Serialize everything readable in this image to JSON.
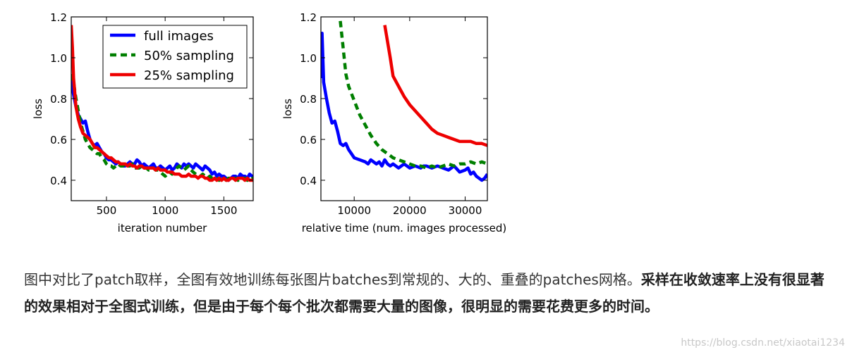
{
  "chart_data": [
    {
      "type": "line",
      "xlabel": "iteration number",
      "ylabel": "loss",
      "xlim": [
        200,
        1750
      ],
      "ylim": [
        0.3,
        1.2
      ],
      "xticks": [
        500,
        1000,
        1500
      ],
      "yticks": [
        0.4,
        0.6,
        0.8,
        1.0,
        1.2
      ],
      "legend_position": "top-right",
      "grid": false,
      "series": [
        {
          "name": "full images",
          "color": "#0000ff",
          "dash": "solid",
          "x": [
            200,
            210,
            220,
            240,
            260,
            280,
            300,
            320,
            340,
            360,
            380,
            400,
            420,
            440,
            460,
            480,
            500,
            520,
            540,
            560,
            580,
            600,
            620,
            640,
            660,
            680,
            700,
            720,
            740,
            760,
            780,
            800,
            820,
            840,
            860,
            880,
            900,
            920,
            940,
            960,
            980,
            1000,
            1020,
            1040,
            1060,
            1080,
            1100,
            1120,
            1140,
            1160,
            1180,
            1200,
            1220,
            1240,
            1260,
            1280,
            1300,
            1320,
            1340,
            1360,
            1380,
            1400,
            1420,
            1440,
            1460,
            1480,
            1500,
            1520,
            1540,
            1560,
            1580,
            1600,
            1620,
            1640,
            1660,
            1680,
            1700,
            1720,
            1740,
            1750
          ],
          "y": [
            0.9,
            0.85,
            0.82,
            0.76,
            0.72,
            0.7,
            0.68,
            0.69,
            0.64,
            0.6,
            0.58,
            0.57,
            0.58,
            0.56,
            0.54,
            0.53,
            0.51,
            0.5,
            0.5,
            0.49,
            0.48,
            0.49,
            0.48,
            0.47,
            0.47,
            0.48,
            0.49,
            0.48,
            0.48,
            0.5,
            0.49,
            0.47,
            0.48,
            0.47,
            0.46,
            0.47,
            0.48,
            0.46,
            0.46,
            0.47,
            0.46,
            0.45,
            0.46,
            0.47,
            0.45,
            0.46,
            0.48,
            0.47,
            0.46,
            0.48,
            0.47,
            0.48,
            0.47,
            0.46,
            0.48,
            0.47,
            0.46,
            0.45,
            0.47,
            0.46,
            0.45,
            0.43,
            0.44,
            0.42,
            0.43,
            0.42,
            0.42,
            0.41,
            0.4,
            0.41,
            0.42,
            0.42,
            0.41,
            0.43,
            0.42,
            0.42,
            0.41,
            0.43,
            0.42,
            0.42
          ]
        },
        {
          "name": "50% sampling",
          "color": "#007f00",
          "dash": "dashed",
          "x": [
            200,
            220,
            240,
            260,
            280,
            300,
            320,
            340,
            360,
            380,
            400,
            420,
            440,
            460,
            480,
            500,
            520,
            540,
            560,
            580,
            600,
            620,
            640,
            660,
            680,
            700,
            720,
            740,
            760,
            780,
            800,
            820,
            840,
            860,
            880,
            900,
            920,
            940,
            960,
            980,
            1000,
            1020,
            1040,
            1060,
            1080,
            1100,
            1120,
            1140,
            1160,
            1180,
            1200,
            1220,
            1240,
            1260,
            1280,
            1300,
            1320,
            1340,
            1360,
            1380,
            1400,
            1420,
            1440,
            1460,
            1480,
            1500,
            1520,
            1540,
            1560,
            1580,
            1600,
            1620,
            1640,
            1660,
            1680,
            1700,
            1720,
            1740,
            1750
          ],
          "y": [
            0.92,
            0.88,
            0.8,
            0.74,
            0.68,
            0.64,
            0.6,
            0.58,
            0.56,
            0.55,
            0.54,
            0.53,
            0.53,
            0.51,
            0.5,
            0.48,
            0.47,
            0.47,
            0.46,
            0.47,
            0.48,
            0.47,
            0.47,
            0.48,
            0.47,
            0.47,
            0.48,
            0.46,
            0.46,
            0.46,
            0.47,
            0.46,
            0.46,
            0.45,
            0.45,
            0.46,
            0.45,
            0.45,
            0.44,
            0.43,
            0.42,
            0.43,
            0.44,
            0.43,
            0.44,
            0.46,
            0.47,
            0.46,
            0.45,
            0.46,
            0.47,
            0.45,
            0.44,
            0.43,
            0.42,
            0.42,
            0.43,
            0.42,
            0.41,
            0.42,
            0.41,
            0.41,
            0.41,
            0.4,
            0.41,
            0.41,
            0.4,
            0.41,
            0.41,
            0.4,
            0.41,
            0.4,
            0.41,
            0.41,
            0.41,
            0.4,
            0.41,
            0.41,
            0.4
          ]
        },
        {
          "name": "25% sampling",
          "color": "#ee0000",
          "dash": "solid",
          "x": [
            200,
            210,
            220,
            240,
            260,
            280,
            300,
            320,
            340,
            360,
            380,
            400,
            420,
            440,
            460,
            480,
            500,
            520,
            540,
            560,
            580,
            600,
            620,
            640,
            660,
            680,
            700,
            720,
            740,
            760,
            780,
            800,
            820,
            840,
            860,
            880,
            900,
            920,
            940,
            960,
            980,
            1000,
            1020,
            1040,
            1060,
            1080,
            1100,
            1120,
            1140,
            1160,
            1180,
            1200,
            1220,
            1240,
            1260,
            1280,
            1300,
            1320,
            1340,
            1360,
            1380,
            1400,
            1420,
            1440,
            1460,
            1480,
            1500,
            1520,
            1540,
            1560,
            1580,
            1600,
            1620,
            1640,
            1660,
            1680,
            1700,
            1720,
            1740,
            1750
          ],
          "y": [
            1.16,
            1.05,
            0.9,
            0.76,
            0.7,
            0.66,
            0.63,
            0.62,
            0.61,
            0.6,
            0.58,
            0.56,
            0.56,
            0.55,
            0.54,
            0.53,
            0.52,
            0.51,
            0.51,
            0.5,
            0.49,
            0.49,
            0.48,
            0.48,
            0.48,
            0.47,
            0.48,
            0.47,
            0.47,
            0.46,
            0.47,
            0.47,
            0.46,
            0.46,
            0.46,
            0.46,
            0.46,
            0.45,
            0.46,
            0.45,
            0.45,
            0.45,
            0.44,
            0.44,
            0.44,
            0.43,
            0.43,
            0.43,
            0.42,
            0.42,
            0.42,
            0.43,
            0.42,
            0.42,
            0.42,
            0.41,
            0.42,
            0.42,
            0.41,
            0.41,
            0.4,
            0.4,
            0.41,
            0.4,
            0.41,
            0.4,
            0.41,
            0.4,
            0.4,
            0.41,
            0.41,
            0.4,
            0.41,
            0.41,
            0.41,
            0.4,
            0.41,
            0.4,
            0.4,
            0.4
          ]
        }
      ]
    },
    {
      "type": "line",
      "xlabel": "relative time (num. images processed)",
      "ylabel": "loss",
      "xlim": [
        4000,
        34000
      ],
      "ylim": [
        0.3,
        1.2
      ],
      "xticks": [
        10000,
        20000,
        30000
      ],
      "yticks": [
        0.4,
        0.6,
        0.8,
        1.0,
        1.2
      ],
      "grid": false,
      "series": [
        {
          "name": "full images",
          "color": "#0000ff",
          "dash": "solid",
          "x": [
            4000,
            4200,
            4500,
            5000,
            5500,
            6000,
            6500,
            7000,
            7500,
            8000,
            8500,
            9000,
            9500,
            10000,
            11000,
            12000,
            12500,
            13000,
            13500,
            14000,
            14500,
            15000,
            15500,
            16000,
            16500,
            17000,
            18000,
            19000,
            20000,
            21000,
            22000,
            22500,
            23000,
            24000,
            25000,
            26000,
            27000,
            28000,
            29000,
            30000,
            30500,
            31000,
            31500,
            32000,
            33000,
            33500,
            34000
          ],
          "y": [
            0.9,
            1.12,
            0.88,
            0.8,
            0.73,
            0.68,
            0.69,
            0.64,
            0.58,
            0.57,
            0.58,
            0.55,
            0.53,
            0.51,
            0.5,
            0.49,
            0.48,
            0.5,
            0.49,
            0.48,
            0.49,
            0.47,
            0.5,
            0.48,
            0.47,
            0.48,
            0.46,
            0.48,
            0.46,
            0.47,
            0.46,
            0.47,
            0.47,
            0.46,
            0.47,
            0.46,
            0.45,
            0.47,
            0.44,
            0.45,
            0.46,
            0.43,
            0.44,
            0.42,
            0.4,
            0.41,
            0.43
          ]
        },
        {
          "name": "50% sampling",
          "color": "#007f00",
          "dash": "dashed",
          "x": [
            7500,
            8000,
            8500,
            9000,
            10000,
            11000,
            12000,
            13000,
            14000,
            15000,
            16000,
            17000,
            18000,
            19000,
            20000,
            21000,
            22000,
            23000,
            24000,
            25000,
            26000,
            27000,
            28000,
            29000,
            30000,
            31000,
            32000,
            33000,
            34000
          ],
          "y": [
            1.18,
            1.05,
            0.92,
            0.86,
            0.79,
            0.72,
            0.67,
            0.62,
            0.58,
            0.55,
            0.53,
            0.51,
            0.5,
            0.49,
            0.48,
            0.47,
            0.47,
            0.46,
            0.47,
            0.46,
            0.47,
            0.48,
            0.47,
            0.48,
            0.48,
            0.49,
            0.48,
            0.49,
            0.48
          ]
        },
        {
          "name": "25% sampling",
          "color": "#ee0000",
          "dash": "solid",
          "x": [
            15500,
            16000,
            16500,
            17000,
            18000,
            19000,
            20000,
            21000,
            22000,
            23000,
            24000,
            25000,
            26000,
            27000,
            28000,
            29000,
            30000,
            31000,
            32000,
            33000,
            34000
          ],
          "y": [
            1.16,
            1.08,
            1.0,
            0.91,
            0.86,
            0.81,
            0.77,
            0.74,
            0.71,
            0.68,
            0.65,
            0.63,
            0.62,
            0.61,
            0.6,
            0.59,
            0.59,
            0.59,
            0.58,
            0.58,
            0.57
          ]
        }
      ]
    }
  ],
  "caption": {
    "normal": "图中对比了patch取样，全图有效地训练每张图片batches到常规的、大的、重叠的patches网格。",
    "bold": "采样在收敛速率上没有很显著的效果相对于全图式训练，但是由于每个每个批次都需要大量的图像，很明显的需要花费更多的时间。"
  },
  "watermark": "https://blog.csdn.net/xiaotai1234"
}
